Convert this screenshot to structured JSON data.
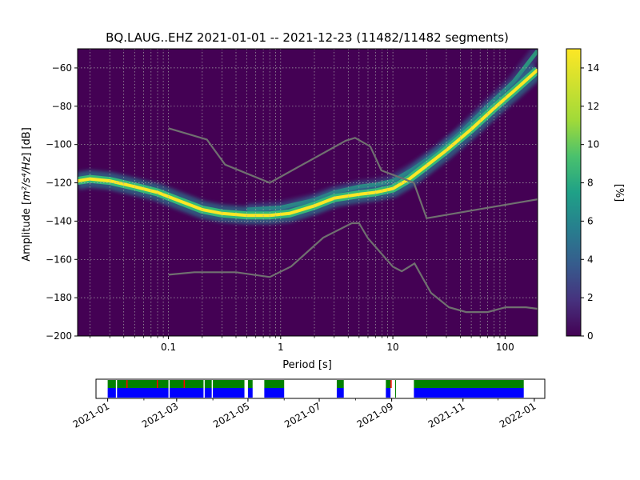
{
  "chart_data": [
    {
      "type": "heatmap",
      "title": "BQ.LAUG..EHZ   2021-01-01 -- 2021-12-23  (11482/11482 segments)",
      "xlabel": "Period [s]",
      "ylabel_main": "Amplitude [",
      "ylabel_math": "m²/s⁴/Hz",
      "ylabel_tail": "] [dB]",
      "xscale": "log",
      "xlim": [
        0.0155,
        195
      ],
      "ylim": [
        -200,
        -50
      ],
      "x_ticks": [
        {
          "value": 0.1,
          "label": "0.1"
        },
        {
          "value": 1,
          "label": "1"
        },
        {
          "value": 10,
          "label": "10"
        },
        {
          "value": 100,
          "label": "100"
        }
      ],
      "y_ticks": [
        {
          "value": -60,
          "label": "−60"
        },
        {
          "value": -80,
          "label": "−80"
        },
        {
          "value": -100,
          "label": "−100"
        },
        {
          "value": -120,
          "label": "−120"
        },
        {
          "value": -140,
          "label": "−140"
        },
        {
          "value": -160,
          "label": "−160"
        },
        {
          "value": -180,
          "label": "−180"
        },
        {
          "value": -200,
          "label": "−200"
        }
      ],
      "grid": true,
      "colormap": "viridis",
      "colorbar": {
        "label": "[%]",
        "range": [
          0,
          15
        ],
        "ticks": [
          {
            "value": 0,
            "label": "0"
          },
          {
            "value": 2,
            "label": "2"
          },
          {
            "value": 4,
            "label": "4"
          },
          {
            "value": 6,
            "label": "6"
          },
          {
            "value": 8,
            "label": "8"
          },
          {
            "value": 10,
            "label": "10"
          },
          {
            "value": 12,
            "label": "12"
          },
          {
            "value": 14,
            "label": "14"
          }
        ]
      },
      "psd_mode": {
        "periods": [
          0.0155,
          0.02,
          0.03,
          0.05,
          0.08,
          0.12,
          0.2,
          0.3,
          0.5,
          0.8,
          1.2,
          2,
          3,
          5,
          7,
          10,
          14,
          20,
          30,
          50,
          80,
          120,
          195
        ],
        "db": [
          -119,
          -118,
          -119,
          -122,
          -125,
          -129,
          -134,
          -136,
          -137,
          -137,
          -136,
          -132,
          -128,
          -126,
          -125,
          -123,
          -118,
          -111,
          -103,
          -92,
          -81,
          -72,
          -61
        ]
      },
      "psd_secondary": {
        "periods": [
          0.5,
          1,
          2,
          3,
          5,
          7,
          10,
          15,
          25,
          40,
          70,
          120,
          195
        ],
        "db": [
          -134,
          -133,
          -129,
          -125,
          -122,
          -121,
          -119,
          -113,
          -104,
          -94,
          -80,
          -67,
          -51
        ]
      },
      "nhnm": {
        "periods": [
          0.1,
          0.22,
          0.32,
          0.8,
          3.8,
          4.6,
          6.3,
          7.9,
          15.4,
          20,
          354.8
        ],
        "db": [
          -91.5,
          -97.4,
          -110.5,
          -120,
          -98,
          -96.5,
          -101,
          -113.5,
          -120,
          -138.5,
          -126
        ]
      },
      "nlnm": {
        "periods": [
          0.1,
          0.17,
          0.4,
          0.8,
          1.24,
          2.4,
          4.3,
          5,
          6,
          10,
          12,
          15.6,
          21.9,
          31.6,
          45,
          70,
          101,
          154,
          328
        ],
        "db": [
          -168,
          -166.7,
          -166.7,
          -169.2,
          -163.7,
          -148.6,
          -141.1,
          -141.1,
          -149,
          -163.8,
          -166.2,
          -162.1,
          -177.5,
          -185,
          -187.5,
          -187.5,
          -185,
          -185,
          -187.5
        ]
      }
    },
    {
      "type": "timeline",
      "x_ticks": [
        "2021-01",
        "2021-03",
        "2021-05",
        "2021-07",
        "2021-09",
        "2021-11",
        "2022-01"
      ],
      "colors": {
        "top": "#008000",
        "bottom": "#0000ff",
        "marker": "#ff0000"
      },
      "coverage": [
        {
          "start": "2021-01-01",
          "end": "2021-01-08"
        },
        {
          "start": "2021-01-09",
          "end": "2021-02-22"
        },
        {
          "start": "2021-02-23",
          "end": "2021-03-24"
        },
        {
          "start": "2021-03-25",
          "end": "2021-03-31"
        },
        {
          "start": "2021-04-01",
          "end": "2021-04-28"
        },
        {
          "start": "2021-05-01",
          "end": "2021-05-05"
        },
        {
          "start": "2021-05-15",
          "end": "2021-06-01"
        },
        {
          "start": "2021-07-16",
          "end": "2021-07-22"
        },
        {
          "start": "2021-08-27",
          "end": "2021-08-31"
        },
        {
          "start": "2021-09-20",
          "end": "2021-12-23"
        }
      ],
      "markers": [
        "2021-01-17",
        "2021-02-12",
        "2021-03-07",
        "2021-08-31"
      ],
      "gap_lines": [
        "2021-09-04"
      ]
    }
  ]
}
